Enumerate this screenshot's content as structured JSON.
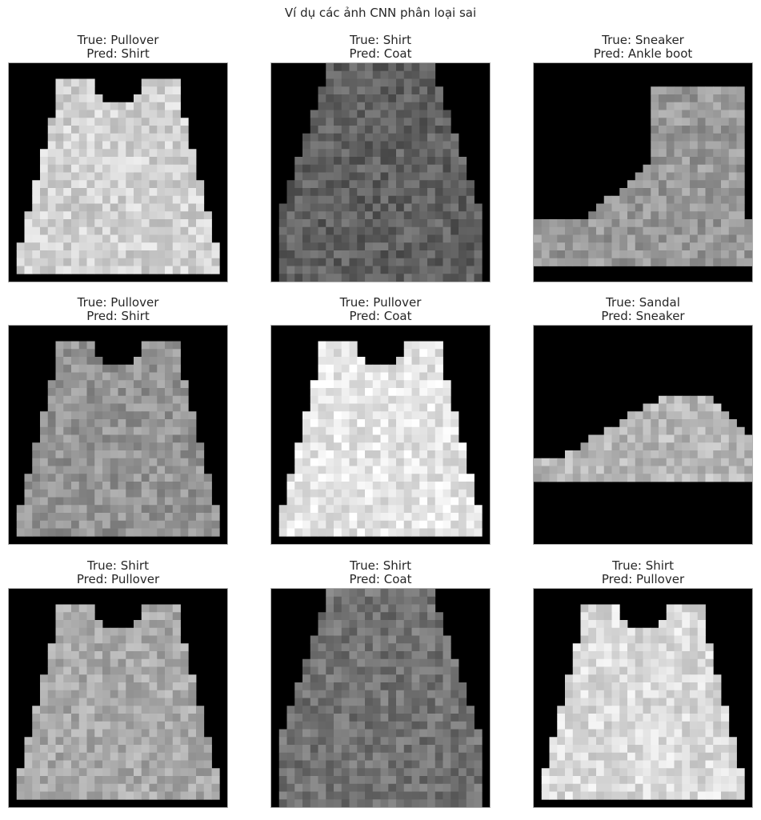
{
  "figure": {
    "title": "Ví dụ các ảnh CNN phân loại sai"
  },
  "panels": [
    {
      "true_label": "True: Pullover",
      "pred_label": "Pred: Shirt",
      "shape": "sweater",
      "shade": 0.82
    },
    {
      "true_label": "True: Shirt",
      "pred_label": "Pred: Coat",
      "shape": "shirt",
      "shade": 0.38
    },
    {
      "true_label": "True: Sneaker",
      "pred_label": "Pred: Ankle boot",
      "shape": "boot",
      "shade": 0.6
    },
    {
      "true_label": "True: Pullover",
      "pred_label": "Pred: Shirt",
      "shape": "sweater",
      "shade": 0.58
    },
    {
      "true_label": "True: Pullover",
      "pred_label": "Pred: Coat",
      "shape": "sweater",
      "shade": 0.9
    },
    {
      "true_label": "True: Sandal",
      "pred_label": "Pred: Sneaker",
      "shape": "shoe",
      "shade": 0.72
    },
    {
      "true_label": "True: Shirt",
      "pred_label": "Pred: Pullover",
      "shape": "sweater",
      "shade": 0.66
    },
    {
      "true_label": "True: Shirt",
      "pred_label": "Pred: Coat",
      "shape": "shirt",
      "shade": 0.45
    },
    {
      "true_label": "True: Shirt",
      "pred_label": "Pred: Pullover",
      "shape": "sweater",
      "shade": 0.86
    }
  ]
}
